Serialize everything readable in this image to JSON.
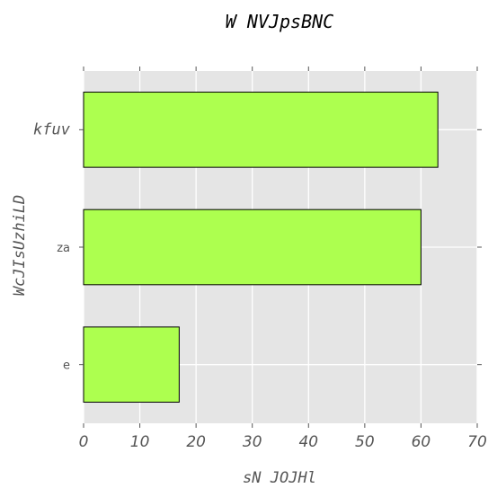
{
  "chart_data": {
    "type": "bar",
    "orientation": "horizontal",
    "title": "W NVJpsBNC",
    "xlabel": "sN JOJHl",
    "ylabel": "WcJIsUzhiLD",
    "categories": [
      "e",
      "za",
      "kfuv"
    ],
    "values": [
      17,
      60,
      63
    ],
    "xlim": [
      0,
      70
    ],
    "x_ticks": [
      0,
      10,
      20,
      30,
      40,
      50,
      60,
      70
    ],
    "grid": true,
    "bar_color": "#adff4f",
    "bar_edge_color": "#000000",
    "background_color": "#e5e5e5",
    "grid_color": "#ffffff"
  }
}
